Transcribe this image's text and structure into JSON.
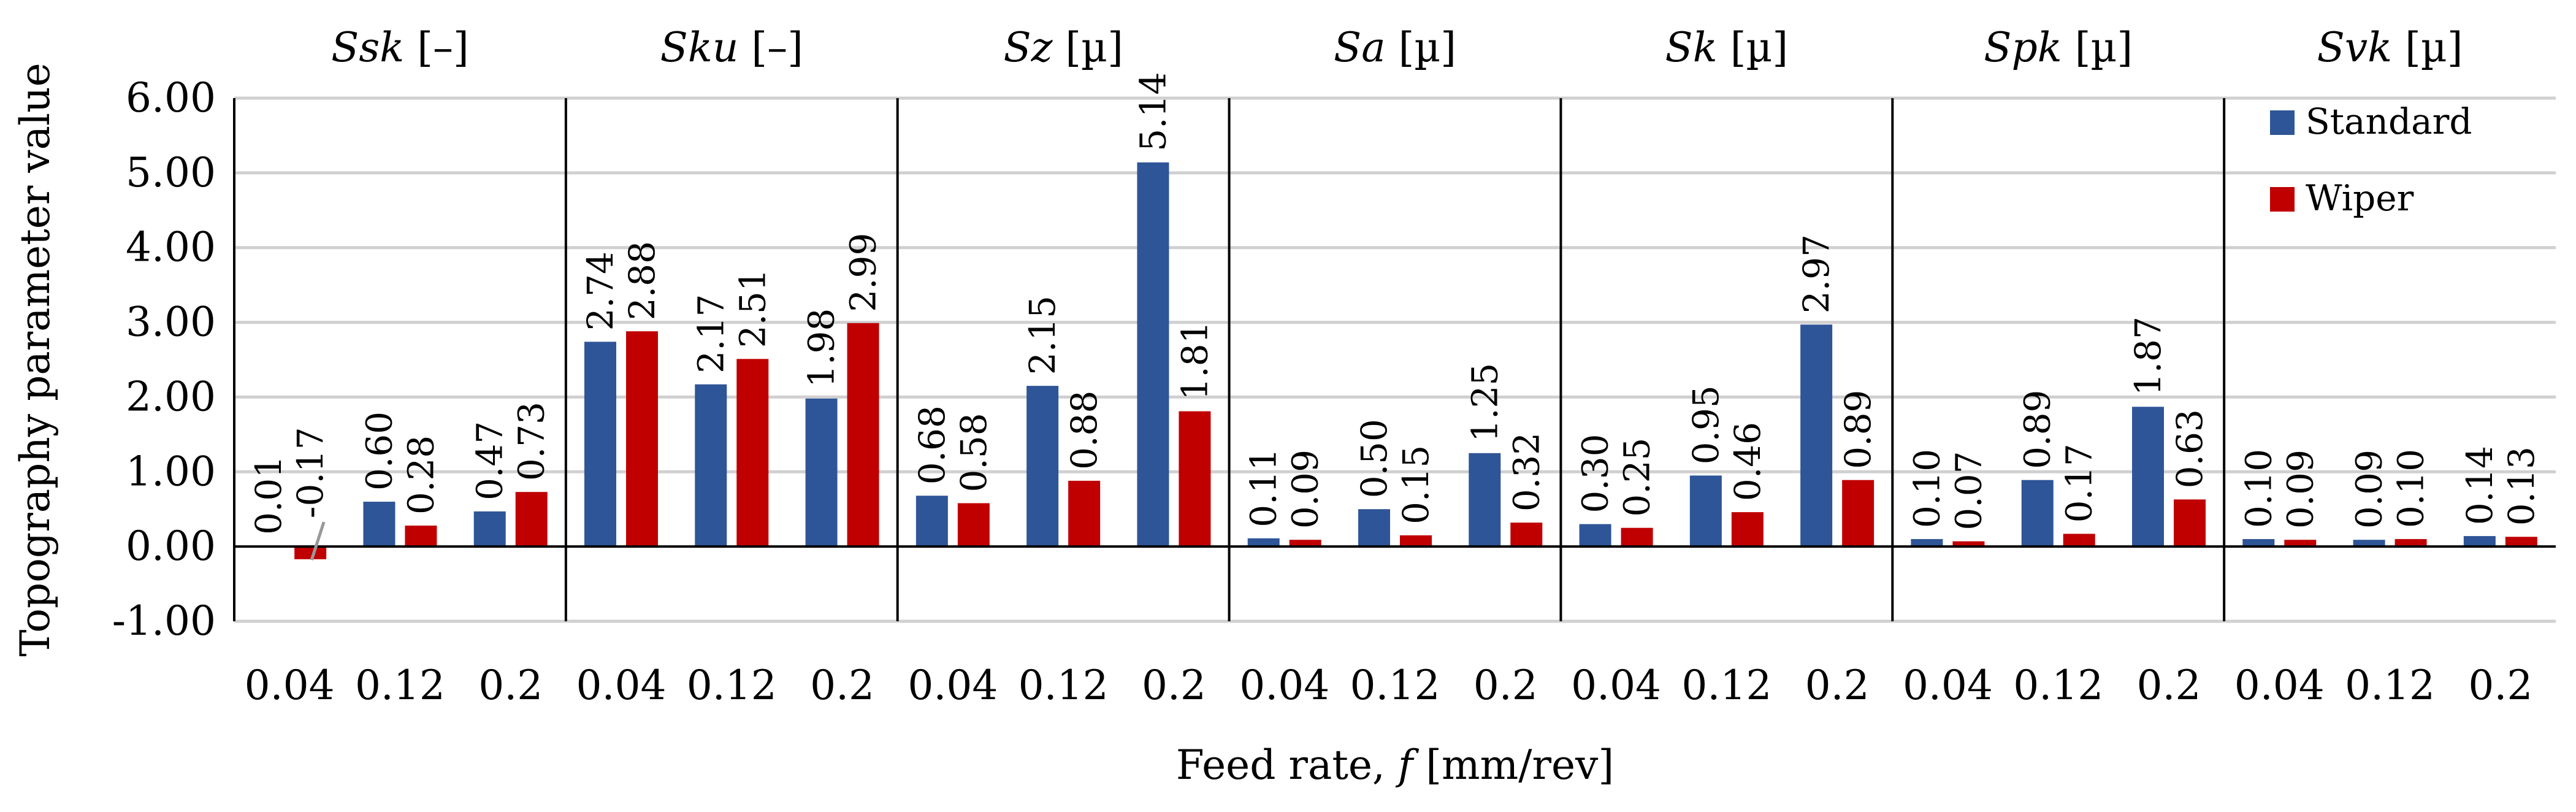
{
  "chart_data": {
    "type": "bar",
    "xlabel": "Feed rate, f [mm/rev]",
    "xlabel_parts": {
      "pre": "Feed rate, ",
      "var": "f",
      "post": " [mm/rev]"
    },
    "ylabel": "Topography parameter value",
    "ylim": [
      -1,
      6
    ],
    "yticks": [
      -1,
      0,
      1,
      2,
      3,
      4,
      5,
      6
    ],
    "ytick_labels": [
      "-1.00",
      "0.00",
      "1.00",
      "2.00",
      "3.00",
      "4.00",
      "5.00",
      "6.00"
    ],
    "grid": true,
    "legend_position": "top-right",
    "series": [
      {
        "name": "Standard",
        "color": "#2e5597"
      },
      {
        "name": "Wiper",
        "color": "#c00000"
      }
    ],
    "groups": [
      {
        "param": "Ssk",
        "unit": "[–]",
        "categories": [
          "0.04",
          "0.12",
          "0.2"
        ],
        "standard": [
          0.01,
          0.6,
          0.47
        ],
        "wiper": [
          -0.17,
          0.28,
          0.73
        ],
        "standard_labels": [
          "0.01",
          "0.60",
          "0.47"
        ],
        "wiper_labels": [
          "-0.17",
          "0.28",
          "0.73"
        ]
      },
      {
        "param": "Sku",
        "unit": "[–]",
        "categories": [
          "0.04",
          "0.12",
          "0.2"
        ],
        "standard": [
          2.74,
          2.17,
          1.98
        ],
        "wiper": [
          2.88,
          2.51,
          2.99
        ],
        "standard_labels": [
          "2.74",
          "2.17",
          "1.98"
        ],
        "wiper_labels": [
          "2.88",
          "2.51",
          "2.99"
        ]
      },
      {
        "param": "Sz",
        "unit": "[µ]",
        "categories": [
          "0.04",
          "0.12",
          "0.2"
        ],
        "standard": [
          0.68,
          2.15,
          5.14
        ],
        "wiper": [
          0.58,
          0.88,
          1.81
        ],
        "standard_labels": [
          "0.68",
          "2.15",
          "5.14"
        ],
        "wiper_labels": [
          "0.58",
          "0.88",
          "1.81"
        ]
      },
      {
        "param": "Sa",
        "unit": "[µ]",
        "categories": [
          "0.04",
          "0.12",
          "0.2"
        ],
        "standard": [
          0.11,
          0.5,
          1.25
        ],
        "wiper": [
          0.09,
          0.15,
          0.32
        ],
        "standard_labels": [
          "0.11",
          "0.50",
          "1.25"
        ],
        "wiper_labels": [
          "0.09",
          "0.15",
          "0.32"
        ]
      },
      {
        "param": "Sk",
        "unit": "[µ]",
        "categories": [
          "0.04",
          "0.12",
          "0.2"
        ],
        "standard": [
          0.3,
          0.95,
          2.97
        ],
        "wiper": [
          0.25,
          0.46,
          0.89
        ],
        "standard_labels": [
          "0.30",
          "0.95",
          "2.97"
        ],
        "wiper_labels": [
          "0.25",
          "0.46",
          "0.89"
        ]
      },
      {
        "param": "Spk",
        "unit": "[µ]",
        "categories": [
          "0.04",
          "0.12",
          "0.2"
        ],
        "standard": [
          0.1,
          0.89,
          1.87
        ],
        "wiper": [
          0.07,
          0.17,
          0.63
        ],
        "standard_labels": [
          "0.10",
          "0.89",
          "1.87"
        ],
        "wiper_labels": [
          "0.07",
          "0.17",
          "0.63"
        ]
      },
      {
        "param": "Svk",
        "unit": "[µ]",
        "categories": [
          "0.04",
          "0.12",
          "0.2"
        ],
        "standard": [
          0.1,
          0.09,
          0.14
        ],
        "wiper": [
          0.09,
          0.1,
          0.13
        ],
        "standard_labels": [
          "0.10",
          "0.09",
          "0.14"
        ],
        "wiper_labels": [
          "0.09",
          "0.10",
          "0.13"
        ]
      }
    ]
  }
}
